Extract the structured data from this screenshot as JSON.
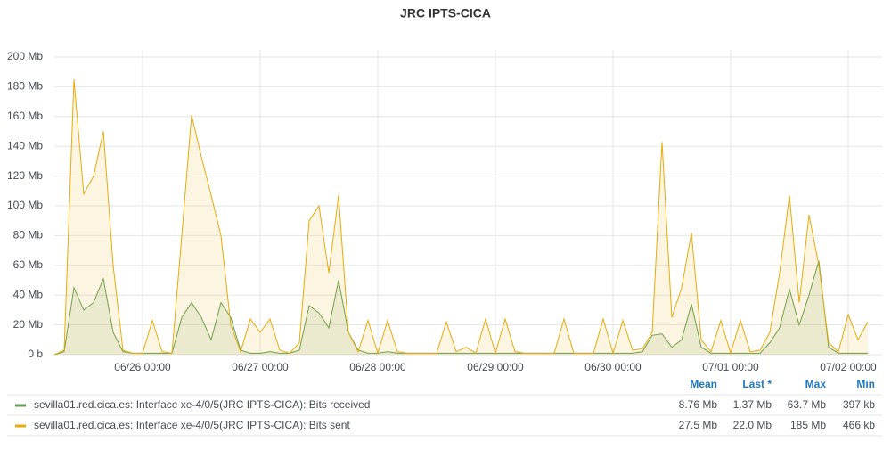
{
  "chart_data": {
    "type": "line",
    "title": "JRC IPTS-CICA",
    "x": [
      "06/25 06:00",
      "06/25 08:00",
      "06/25 10:00",
      "06/25 12:00",
      "06/25 14:00",
      "06/25 16:00",
      "06/25 18:00",
      "06/25 20:00",
      "06/25 22:00",
      "06/26 00:00",
      "06/26 02:00",
      "06/26 04:00",
      "06/26 06:00",
      "06/26 08:00",
      "06/26 10:00",
      "06/26 12:00",
      "06/26 14:00",
      "06/26 16:00",
      "06/26 18:00",
      "06/26 20:00",
      "06/26 22:00",
      "06/27 00:00",
      "06/27 02:00",
      "06/27 04:00",
      "06/27 06:00",
      "06/27 08:00",
      "06/27 10:00",
      "06/27 12:00",
      "06/27 14:00",
      "06/27 16:00",
      "06/27 18:00",
      "06/27 20:00",
      "06/27 22:00",
      "06/28 00:00",
      "06/28 02:00",
      "06/28 04:00",
      "06/28 06:00",
      "06/28 08:00",
      "06/28 10:00",
      "06/28 12:00",
      "06/28 14:00",
      "06/28 16:00",
      "06/28 18:00",
      "06/28 20:00",
      "06/28 22:00",
      "06/29 00:00",
      "06/29 02:00",
      "06/29 04:00",
      "06/29 06:00",
      "06/29 08:00",
      "06/29 10:00",
      "06/29 12:00",
      "06/29 14:00",
      "06/29 16:00",
      "06/29 18:00",
      "06/29 20:00",
      "06/29 22:00",
      "06/30 00:00",
      "06/30 02:00",
      "06/30 04:00",
      "06/30 06:00",
      "06/30 08:00",
      "06/30 10:00",
      "06/30 12:00",
      "06/30 14:00",
      "06/30 16:00",
      "06/30 18:00",
      "06/30 20:00",
      "06/30 22:00",
      "07/01 00:00",
      "07/01 02:00",
      "07/01 04:00",
      "07/01 06:00",
      "07/01 08:00",
      "07/01 10:00",
      "07/01 12:00",
      "07/01 14:00",
      "07/01 16:00",
      "07/01 18:00",
      "07/01 20:00",
      "07/01 22:00",
      "07/02 00:00",
      "07/02 02:00",
      "07/02 04:00"
    ],
    "xticks": [
      "06/26 00:00",
      "06/27 00:00",
      "06/28 00:00",
      "06/29 00:00",
      "06/30 00:00",
      "07/01 00:00",
      "07/02 00:00"
    ],
    "ylim": [
      0,
      200
    ],
    "yticks": [
      {
        "value": 0,
        "label": "0 b"
      },
      {
        "value": 20,
        "label": "20 Mb"
      },
      {
        "value": 40,
        "label": "40 Mb"
      },
      {
        "value": 60,
        "label": "60 Mb"
      },
      {
        "value": 80,
        "label": "80 Mb"
      },
      {
        "value": 100,
        "label": "100 Mb"
      },
      {
        "value": 120,
        "label": "120 Mb"
      },
      {
        "value": 140,
        "label": "140 Mb"
      },
      {
        "value": 160,
        "label": "160 Mb"
      },
      {
        "value": 180,
        "label": "180 Mb"
      },
      {
        "value": 200,
        "label": "200 Mb"
      }
    ],
    "grid": true,
    "stat_names": [
      "Mean",
      "Last *",
      "Max",
      "Min"
    ],
    "series": [
      {
        "name": "sevilla01.red.cica.es: Interface xe-4/0/5(JRC IPTS-CICA): Bits received",
        "color": "#629e51",
        "values": [
          0,
          2,
          45,
          30,
          35,
          51,
          15,
          2,
          1,
          1,
          1,
          1,
          1,
          25,
          35,
          25,
          10,
          35,
          25,
          3,
          1,
          1,
          2,
          1,
          1,
          3,
          33,
          28,
          18,
          50,
          15,
          3,
          1,
          1,
          2,
          1,
          1,
          1,
          1,
          1,
          1,
          1,
          1,
          1,
          1,
          1,
          1,
          1,
          1,
          1,
          1,
          1,
          1,
          1,
          1,
          1,
          1,
          1,
          1,
          1,
          2,
          13,
          14,
          5,
          10,
          34,
          5,
          1,
          1,
          1,
          1,
          1,
          1,
          8,
          18,
          44,
          20,
          40,
          63,
          5,
          1,
          1,
          1,
          1
        ],
        "stats": [
          {
            "value": 8.76,
            "label": "8.76 Mb"
          },
          {
            "value": 1.37,
            "label": "1.37 Mb"
          },
          {
            "value": 63.7,
            "label": "63.7 Mb"
          },
          {
            "value": 0.397,
            "label": "397 kb"
          }
        ]
      },
      {
        "name": "sevilla01.red.cica.es: Interface xe-4/0/5(JRC IPTS-CICA): Bits sent",
        "color": "#e5ac0e",
        "values": [
          0,
          3,
          185,
          108,
          120,
          150,
          60,
          3,
          1,
          1,
          23,
          2,
          1,
          80,
          161,
          133,
          107,
          80,
          20,
          2,
          24,
          15,
          24,
          3,
          1,
          8,
          90,
          100,
          55,
          107,
          15,
          2,
          23,
          1,
          23,
          2,
          1,
          1,
          1,
          1,
          22,
          2,
          5,
          1,
          24,
          1,
          24,
          2,
          1,
          1,
          1,
          1,
          24,
          1,
          1,
          1,
          24,
          1,
          23,
          3,
          4,
          15,
          143,
          25,
          45,
          82,
          10,
          2,
          23,
          1,
          23,
          2,
          3,
          15,
          55,
          107,
          35,
          94,
          60,
          8,
          2,
          27,
          10,
          22
        ],
        "stats": [
          {
            "value": 27.5,
            "label": "27.5 Mb"
          },
          {
            "value": 22.0,
            "label": "22.0 Mb"
          },
          {
            "value": 185,
            "label": "185 Mb"
          },
          {
            "value": 0.466,
            "label": "466 kb"
          }
        ]
      }
    ]
  }
}
